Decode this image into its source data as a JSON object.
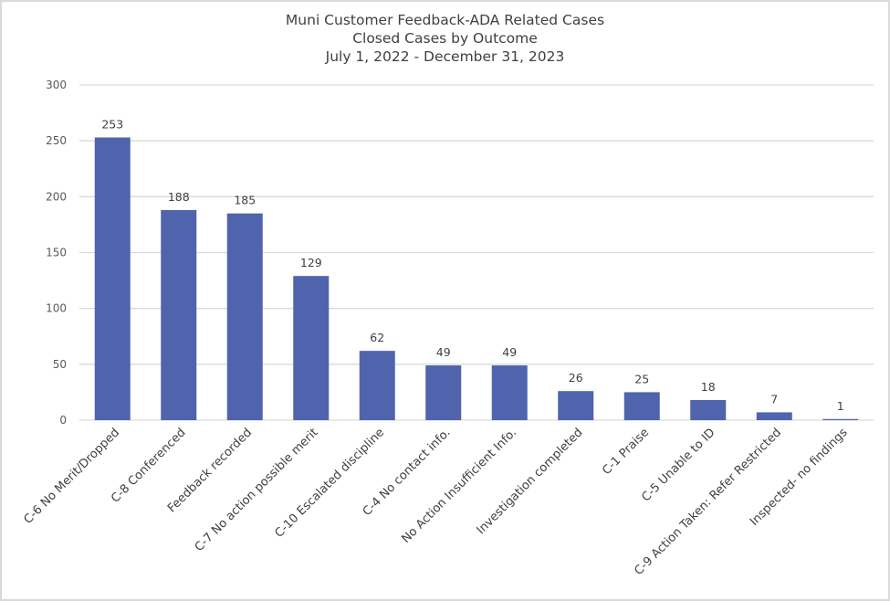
{
  "title_lines": [
    "Muni Customer Feedback-ADA Related Cases",
    "Closed Cases by Outcome",
    "July 1, 2022 - December 31, 2023"
  ],
  "colors": {
    "bar": "#4f64ac",
    "gridline": "#d9d9d9",
    "text": "#404040",
    "border": "#d9d9d9"
  },
  "chart_data": {
    "type": "bar",
    "title": "Muni Customer Feedback-ADA Related Cases / Closed Cases by Outcome / July 1, 2022 - December 31, 2023",
    "categories": [
      "C-6 No Merit/Dropped",
      "C-8 Conferenced",
      "Feedback recorded",
      "C-7 No action possible merit",
      "C-10 Escalated discipline",
      "C-4 No contact info.",
      "No Action Insufficient Info.",
      "Investigation completed",
      "C-1 Praise",
      "C-5 Unable to ID",
      "C-9 Action Taken: Refer Restricted",
      "Inspected- no findings"
    ],
    "values": [
      253,
      188,
      185,
      129,
      62,
      49,
      49,
      26,
      25,
      18,
      7,
      1
    ],
    "xlabel": "",
    "ylabel": "",
    "ylim": [
      0,
      300
    ],
    "yticks": [
      0,
      50,
      100,
      150,
      200,
      250,
      300
    ],
    "grid": true,
    "legend": "none",
    "data_labels": true
  }
}
